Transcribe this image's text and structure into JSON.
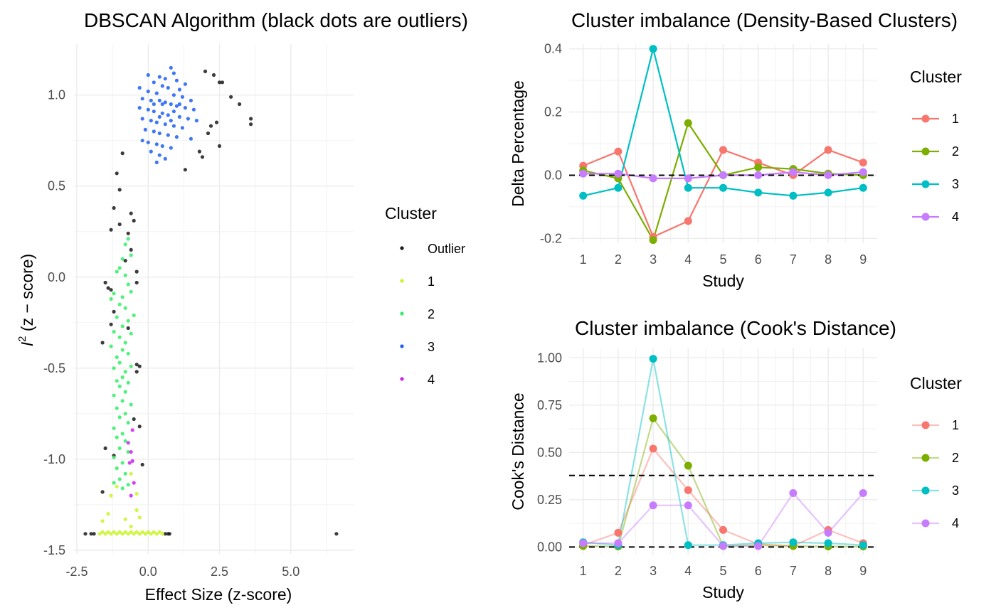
{
  "chart_data": [
    {
      "type": "scatter",
      "title": "DBSCAN Algorithm (black dots are outliers)",
      "xlabel": "Effect Size (z-score)",
      "ylabel_base": "I",
      "ylabel_sup": "2",
      "ylabel_rest": " (z − score)",
      "xlim": [
        -2.6,
        7.2
      ],
      "ylim": [
        -1.52,
        1.28
      ],
      "x_ticks": [
        -2.5,
        0.0,
        2.5,
        5.0
      ],
      "x_tick_labels": [
        "-2.5",
        "0.0",
        "2.5",
        "5.0"
      ],
      "y_ticks": [
        -1.5,
        -1.0,
        -0.5,
        0.0,
        0.5,
        1.0
      ],
      "y_tick_labels": [
        "-1.5",
        "-1.0",
        "-0.5",
        "0.0",
        "0.5",
        "1.0"
      ],
      "grid": true,
      "legend_title": "Cluster",
      "legend_position": "right",
      "legend": [
        {
          "label": "Outlier",
          "color": "#1a1a1a"
        },
        {
          "label": "1",
          "color": "#c8f526"
        },
        {
          "label": "2",
          "color": "#33ee66"
        },
        {
          "label": "3",
          "color": "#1f5ff5"
        },
        {
          "label": "4",
          "color": "#cc22ee"
        }
      ],
      "series": [
        {
          "name": "Outlier",
          "color": "#1a1a1a",
          "points": [
            [
              2.0,
              1.13
            ],
            [
              2.3,
              1.11
            ],
            [
              2.5,
              1.07
            ],
            [
              2.6,
              1.07
            ],
            [
              2.9,
              0.99
            ],
            [
              3.2,
              0.95
            ],
            [
              3.6,
              0.87
            ],
            [
              3.6,
              0.84
            ],
            [
              2.2,
              0.83
            ],
            [
              2.4,
              0.85
            ],
            [
              2.1,
              0.79
            ],
            [
              2.5,
              0.72
            ],
            [
              1.8,
              0.69
            ],
            [
              1.9,
              0.66
            ],
            [
              1.3,
              0.59
            ],
            [
              -0.9,
              0.68
            ],
            [
              -1.1,
              0.57
            ],
            [
              -1.0,
              0.48
            ],
            [
              -1.2,
              0.38
            ],
            [
              -0.6,
              0.35
            ],
            [
              -0.5,
              0.31
            ],
            [
              -1.0,
              0.29
            ],
            [
              -1.3,
              0.26
            ],
            [
              -0.7,
              0.24
            ],
            [
              -0.6,
              0.15
            ],
            [
              -0.8,
              0.09
            ],
            [
              -0.4,
              0.03
            ],
            [
              -0.4,
              -0.03
            ],
            [
              -1.5,
              -0.03
            ],
            [
              -1.4,
              -0.06
            ],
            [
              -1.3,
              -0.07
            ],
            [
              -1.2,
              -0.19
            ],
            [
              -1.3,
              -0.26
            ],
            [
              -0.7,
              -0.28
            ],
            [
              -0.4,
              -0.48
            ],
            [
              -0.3,
              -0.49
            ],
            [
              -0.4,
              -0.52
            ],
            [
              -1.6,
              -0.36
            ],
            [
              -0.5,
              -0.78
            ],
            [
              -0.3,
              -0.82
            ],
            [
              -1.5,
              -0.94
            ],
            [
              -1.2,
              -0.98
            ],
            [
              -0.2,
              -1.03
            ],
            [
              -1.6,
              -1.18
            ],
            [
              -2.2,
              -1.41
            ],
            [
              -2.0,
              -1.41
            ],
            [
              -1.9,
              -1.41
            ],
            [
              0.6,
              -1.41
            ],
            [
              0.7,
              -1.41
            ],
            [
              0.75,
              -1.41
            ],
            [
              6.6,
              -1.41
            ]
          ]
        },
        {
          "name": "1",
          "color": "#c8f526",
          "points": [
            [
              -1.7,
              -1.41
            ],
            [
              -1.5,
              -1.41
            ],
            [
              -1.3,
              -1.41
            ],
            [
              -1.1,
              -1.41
            ],
            [
              -0.9,
              -1.41
            ],
            [
              -0.7,
              -1.41
            ],
            [
              -0.5,
              -1.41
            ],
            [
              -0.3,
              -1.41
            ],
            [
              -0.1,
              -1.41
            ],
            [
              0.1,
              -1.41
            ],
            [
              0.3,
              -1.41
            ],
            [
              0.5,
              -1.41
            ],
            [
              -1.6,
              -1.4
            ],
            [
              -1.4,
              -1.4
            ],
            [
              -1.2,
              -1.4
            ],
            [
              -1.0,
              -1.4
            ],
            [
              -0.8,
              -1.4
            ],
            [
              -0.6,
              -1.4
            ],
            [
              -0.4,
              -1.4
            ],
            [
              -0.2,
              -1.4
            ],
            [
              0.0,
              -1.4
            ],
            [
              0.2,
              -1.4
            ],
            [
              0.4,
              -1.4
            ],
            [
              -1.4,
              -1.3
            ],
            [
              -1.6,
              -1.34
            ],
            [
              -1.3,
              -1.2
            ],
            [
              -0.8,
              -1.33
            ],
            [
              -0.6,
              -1.37
            ],
            [
              -0.4,
              -1.28
            ],
            [
              -0.4,
              -1.19
            ],
            [
              -0.3,
              -1.32
            ],
            [
              -1.1,
              -1.15
            ],
            [
              -0.6,
              -1.08
            ]
          ]
        },
        {
          "name": "2",
          "color": "#33ee66",
          "points": [
            [
              -0.7,
              0.21
            ],
            [
              -0.8,
              0.18
            ],
            [
              -0.6,
              0.12
            ],
            [
              -0.9,
              0.1
            ],
            [
              -1.0,
              0.05
            ],
            [
              -1.1,
              0.03
            ],
            [
              -0.8,
              0.01
            ],
            [
              -0.7,
              -0.04
            ],
            [
              -1.2,
              -0.09
            ],
            [
              -0.9,
              -0.11
            ],
            [
              -0.6,
              -0.08
            ],
            [
              -1.0,
              -0.15
            ],
            [
              -0.8,
              -0.17
            ],
            [
              -1.1,
              -0.22
            ],
            [
              -0.7,
              -0.24
            ],
            [
              -0.9,
              -0.27
            ],
            [
              -1.2,
              -0.3
            ],
            [
              -0.6,
              -0.31
            ],
            [
              -1.0,
              -0.33
            ],
            [
              -0.8,
              -0.36
            ],
            [
              -1.3,
              -0.38
            ],
            [
              -0.9,
              -0.4
            ],
            [
              -0.7,
              -0.42
            ],
            [
              -1.1,
              -0.44
            ],
            [
              -1.0,
              -0.47
            ],
            [
              -0.6,
              -0.49
            ],
            [
              -1.2,
              -0.5
            ],
            [
              -0.8,
              -0.52
            ],
            [
              -0.9,
              -0.55
            ],
            [
              -1.1,
              -0.57
            ],
            [
              -0.7,
              -0.58
            ],
            [
              -1.0,
              -0.6
            ],
            [
              -0.8,
              -0.63
            ],
            [
              -1.2,
              -0.65
            ],
            [
              -0.9,
              -0.68
            ],
            [
              -0.6,
              -0.7
            ],
            [
              -1.1,
              -0.72
            ],
            [
              -0.8,
              -0.75
            ],
            [
              -1.0,
              -0.77
            ],
            [
              -0.7,
              -0.8
            ],
            [
              -1.2,
              -0.83
            ],
            [
              -0.9,
              -0.86
            ],
            [
              -1.1,
              -0.88
            ],
            [
              -0.8,
              -0.9
            ],
            [
              -1.0,
              -0.94
            ],
            [
              -0.7,
              -0.96
            ],
            [
              -1.2,
              -0.99
            ],
            [
              -0.9,
              -1.02
            ],
            [
              -1.1,
              -1.05
            ],
            [
              -0.8,
              -1.08
            ],
            [
              -1.0,
              -1.11
            ],
            [
              -1.2,
              -1.13
            ],
            [
              -0.9,
              -1.16
            ],
            [
              -0.7,
              -1.14
            ],
            [
              -1.3,
              -0.12
            ],
            [
              -0.5,
              -0.21
            ]
          ]
        },
        {
          "name": "3",
          "color": "#1f5ff5",
          "points": [
            [
              0.8,
              1.15
            ],
            [
              0.9,
              1.12
            ],
            [
              0.4,
              1.1
            ],
            [
              0.6,
              1.09
            ],
            [
              1.0,
              1.08
            ],
            [
              0.2,
              1.07
            ],
            [
              0.5,
              1.05
            ],
            [
              0.7,
              1.04
            ],
            [
              1.1,
              1.03
            ],
            [
              0.0,
              1.02
            ],
            [
              0.3,
              1.01
            ],
            [
              0.9,
              1.0
            ],
            [
              1.2,
              0.99
            ],
            [
              -0.2,
              0.98
            ],
            [
              0.1,
              0.97
            ],
            [
              0.4,
              0.97
            ],
            [
              0.6,
              0.96
            ],
            [
              0.8,
              0.95
            ],
            [
              1.0,
              0.94
            ],
            [
              1.3,
              0.93
            ],
            [
              -0.3,
              0.93
            ],
            [
              0.0,
              0.92
            ],
            [
              0.2,
              0.91
            ],
            [
              0.5,
              0.9
            ],
            [
              0.7,
              0.89
            ],
            [
              1.1,
              0.88
            ],
            [
              1.4,
              0.87
            ],
            [
              -0.2,
              0.87
            ],
            [
              0.1,
              0.86
            ],
            [
              0.3,
              0.85
            ],
            [
              0.6,
              0.84
            ],
            [
              0.9,
              0.83
            ],
            [
              1.2,
              0.82
            ],
            [
              -0.1,
              0.81
            ],
            [
              0.2,
              0.8
            ],
            [
              0.4,
              0.79
            ],
            [
              0.7,
              0.78
            ],
            [
              1.0,
              0.77
            ],
            [
              1.5,
              0.76
            ],
            [
              -0.2,
              0.75
            ],
            [
              0.0,
              0.74
            ],
            [
              0.3,
              0.73
            ],
            [
              0.5,
              0.72
            ],
            [
              0.8,
              0.71
            ],
            [
              0.1,
              0.69
            ],
            [
              0.4,
              0.67
            ],
            [
              0.6,
              0.65
            ],
            [
              0.3,
              0.63
            ],
            [
              1.6,
              0.92
            ],
            [
              1.5,
              0.97
            ],
            [
              1.7,
              0.86
            ],
            [
              -0.3,
              1.04
            ],
            [
              0.0,
              1.11
            ],
            [
              1.3,
              1.06
            ],
            [
              0.5,
              0.95
            ],
            [
              0.8,
              0.86
            ],
            [
              0.2,
              0.95
            ],
            [
              1.1,
              0.95
            ],
            [
              0.9,
              0.91
            ],
            [
              0.4,
              0.88
            ]
          ]
        },
        {
          "name": "4",
          "color": "#cc22ee",
          "points": [
            [
              -0.55,
              -0.84
            ],
            [
              -0.7,
              -0.91
            ],
            [
              -0.6,
              -0.96
            ],
            [
              -0.55,
              -1.01
            ],
            [
              -0.65,
              -1.02
            ],
            [
              -0.5,
              -1.13
            ],
            [
              -0.6,
              -1.2
            ]
          ]
        }
      ]
    },
    {
      "type": "line",
      "title": "Cluster imbalance (Density-Based Clusters)",
      "xlabel": "Study",
      "ylabel": "Delta Percentage",
      "categories": [
        "1",
        "2",
        "3",
        "4",
        "5",
        "6",
        "7",
        "8",
        "9"
      ],
      "x_ticks": [
        1,
        2,
        3,
        4,
        5,
        6,
        7,
        8,
        9
      ],
      "ylim": [
        -0.215,
        0.415
      ],
      "y_ticks": [
        -0.2,
        0.0,
        0.2,
        0.4
      ],
      "y_tick_labels": [
        "-0.2",
        "0.0",
        "0.2",
        "0.4"
      ],
      "reference_lines": [
        0.0
      ],
      "grid": true,
      "legend_title": "Cluster",
      "legend_position": "right",
      "series": [
        {
          "name": "1",
          "color": "#f8766d",
          "values": [
            0.03,
            0.075,
            -0.195,
            -0.145,
            0.08,
            0.04,
            0.0,
            0.08,
            0.04
          ]
        },
        {
          "name": "2",
          "color": "#7cae00",
          "values": [
            0.015,
            -0.01,
            -0.205,
            0.165,
            0.0,
            0.025,
            0.02,
            0.005,
            0.0
          ]
        },
        {
          "name": "3",
          "color": "#00bfc4",
          "values": [
            -0.065,
            -0.04,
            0.4,
            -0.04,
            -0.04,
            -0.055,
            -0.065,
            -0.055,
            -0.04
          ]
        },
        {
          "name": "4",
          "color": "#c77cff",
          "values": [
            0.005,
            0.005,
            -0.01,
            -0.01,
            0.0,
            0.0,
            0.01,
            0.0,
            0.01
          ]
        }
      ]
    },
    {
      "type": "line",
      "title": "Cluster imbalance (Cook's Distance)",
      "xlabel": "Study",
      "ylabel": "Cook's Distance",
      "categories": [
        "1",
        "2",
        "3",
        "4",
        "5",
        "6",
        "7",
        "8",
        "9"
      ],
      "x_ticks": [
        1,
        2,
        3,
        4,
        5,
        6,
        7,
        8,
        9
      ],
      "ylim": [
        -0.04,
        1.05
      ],
      "y_ticks": [
        0.0,
        0.25,
        0.5,
        0.75,
        1.0
      ],
      "y_tick_labels": [
        "0.00",
        "0.25",
        "0.50",
        "0.75",
        "1.00"
      ],
      "reference_lines": [
        0.0,
        0.378
      ],
      "grid": true,
      "legend_title": "Cluster",
      "legend_position": "right",
      "series": [
        {
          "name": "1",
          "color": "#f8766d",
          "values": [
            0.01,
            0.075,
            0.52,
            0.3,
            0.09,
            0.015,
            0.005,
            0.09,
            0.02
          ]
        },
        {
          "name": "2",
          "color": "#7cae00",
          "values": [
            0.005,
            0.003,
            0.68,
            0.43,
            0.005,
            0.01,
            0.005,
            0.003,
            0.003
          ]
        },
        {
          "name": "3",
          "color": "#00bfc4",
          "values": [
            0.025,
            0.01,
            0.995,
            0.01,
            0.01,
            0.02,
            0.025,
            0.02,
            0.01
          ]
        },
        {
          "name": "4",
          "color": "#c77cff",
          "values": [
            0.02,
            0.02,
            0.22,
            0.22,
            0.005,
            0.005,
            0.285,
            0.075,
            0.285
          ]
        }
      ]
    }
  ]
}
